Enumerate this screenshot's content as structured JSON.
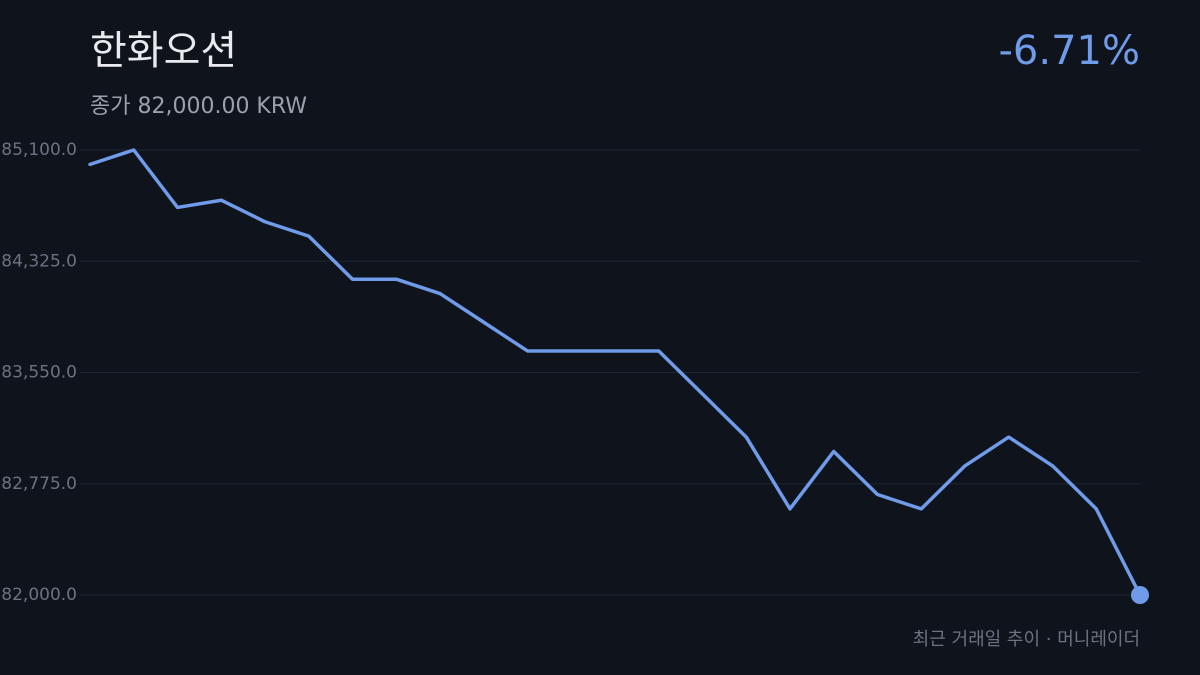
{
  "chart_data": {
    "type": "line",
    "title": "한화오션",
    "subtitle": "종가 82,000.00 KRW",
    "change": "-6.71%",
    "footer": "최근 거래일 추이 · 머니레이더",
    "series": [
      {
        "color": "#6f9be8",
        "values": [
          85000,
          85100,
          84700,
          84750,
          84600,
          84500,
          84200,
          84200,
          84100,
          83900,
          83700,
          83700,
          83700,
          83700,
          83400,
          83100,
          82600,
          83000,
          82700,
          82600,
          82900,
          83100,
          82900,
          82600,
          82000
        ]
      }
    ],
    "ylim": [
      82000,
      85100
    ],
    "yticks": [
      {
        "value": 82000,
        "label": "82,000.0"
      },
      {
        "value": 82775,
        "label": "82,775.0"
      },
      {
        "value": 83550,
        "label": "83,550.0"
      },
      {
        "value": 84325,
        "label": "84,325.0"
      },
      {
        "value": 85100,
        "label": "85,100.0"
      }
    ],
    "grid": true
  }
}
